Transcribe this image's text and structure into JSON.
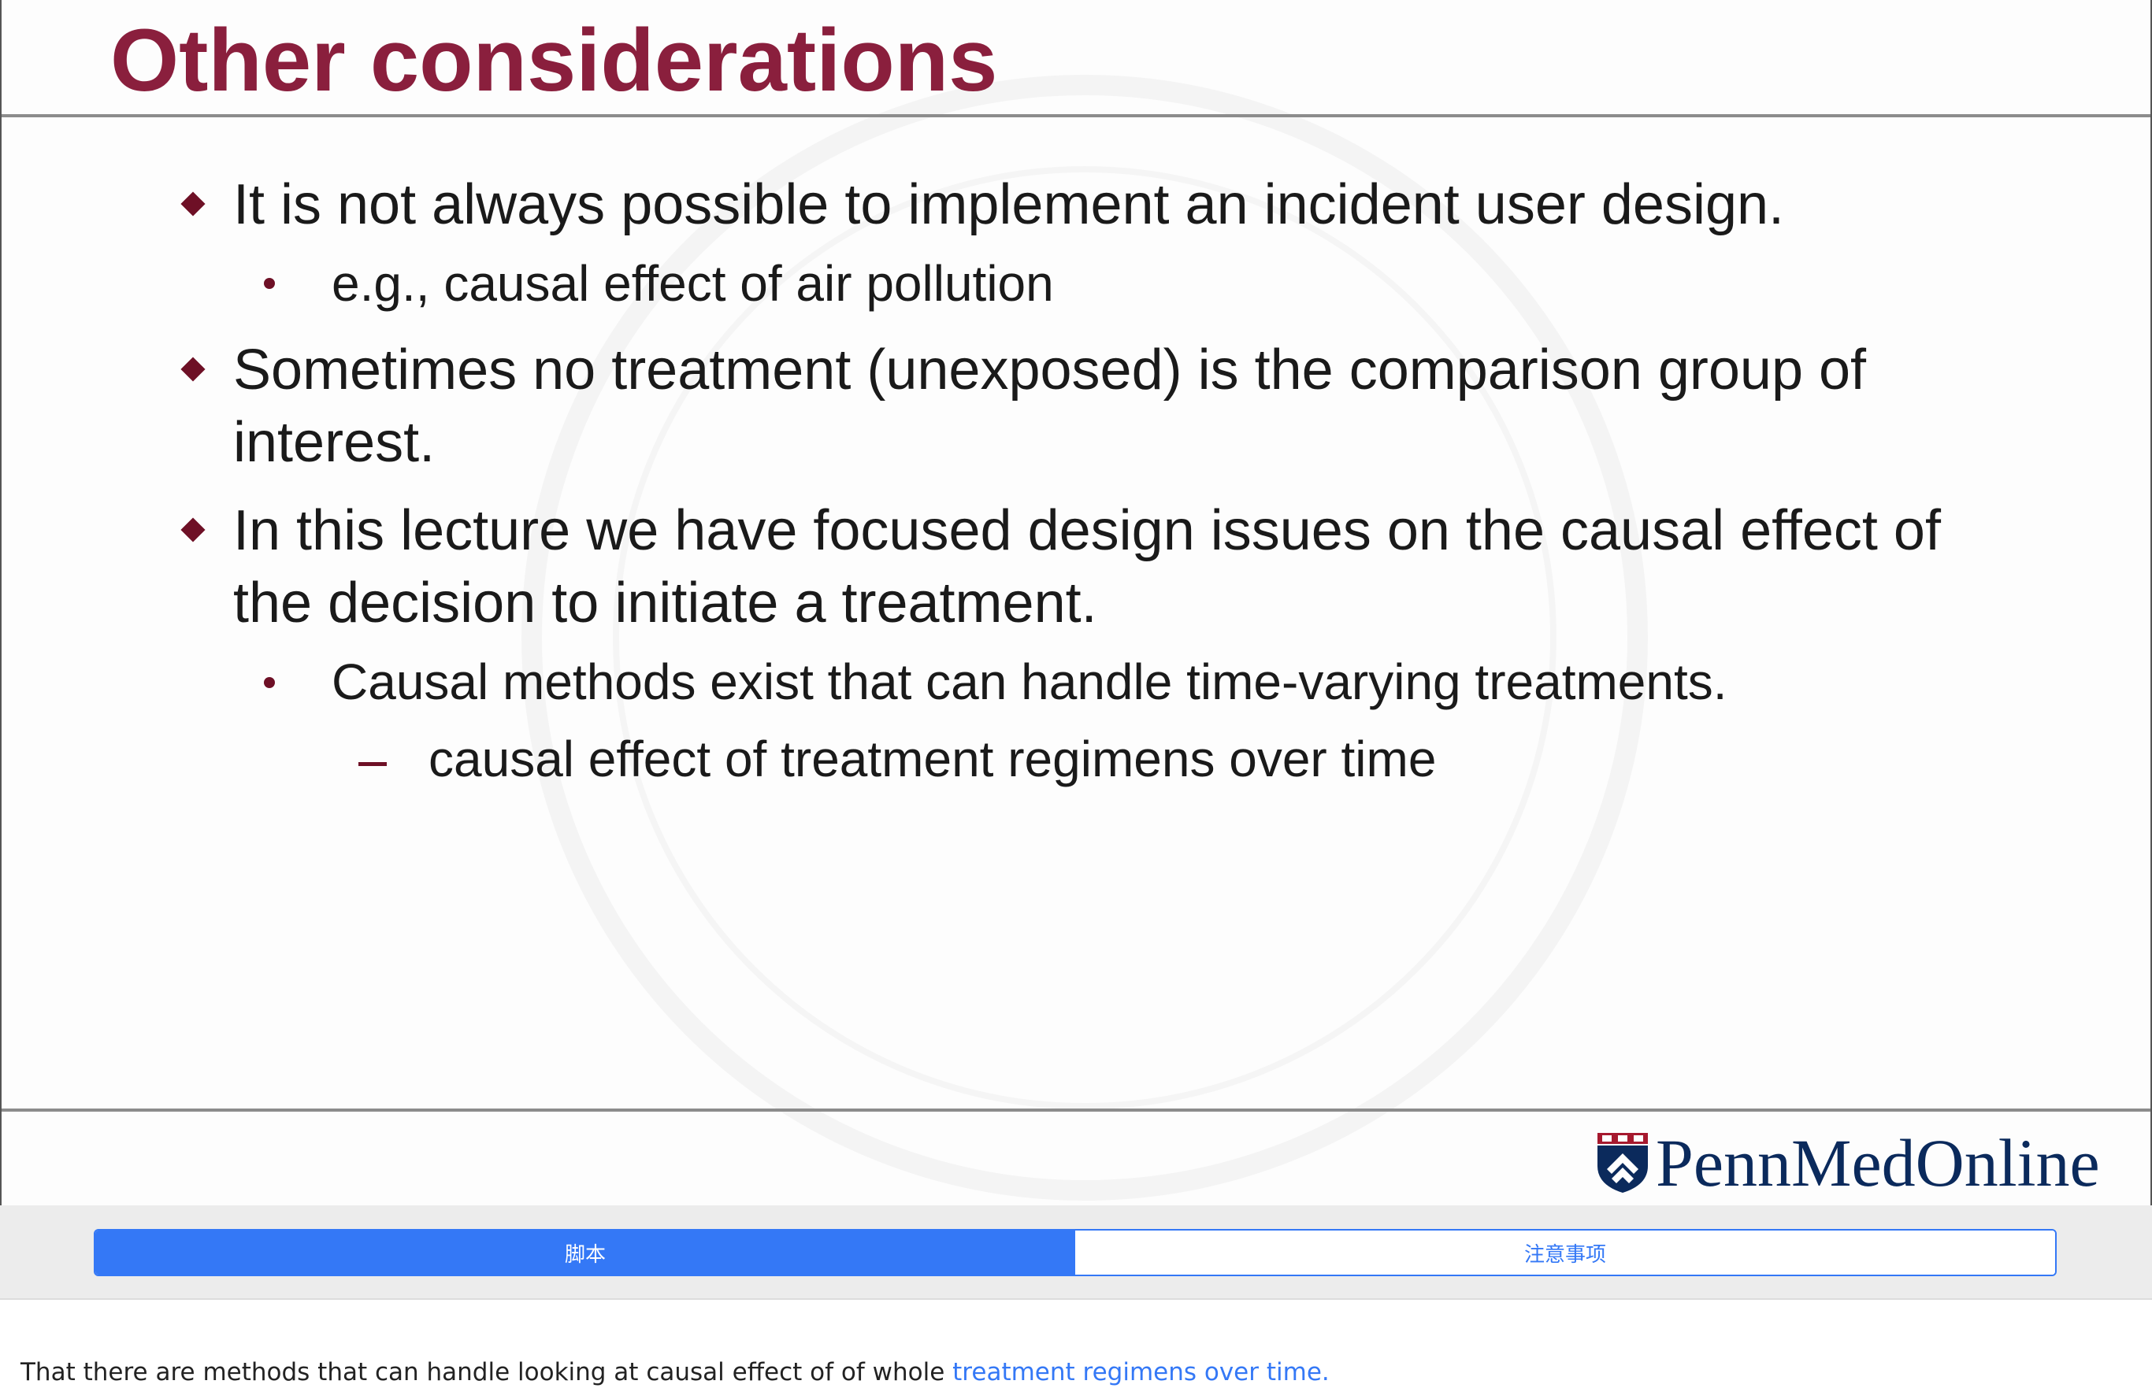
{
  "slide": {
    "title": "Other considerations",
    "bullets": [
      {
        "level": 1,
        "text": "It is not always possible to implement an incident user design."
      },
      {
        "level": 2,
        "text": "e.g., causal effect of air pollution"
      },
      {
        "level": 1,
        "text": "Sometimes no treatment (unexposed) is the comparison group of interest."
      },
      {
        "level": 1,
        "text": "In this lecture we have focused design issues on the causal effect of the decision to initiate a treatment."
      },
      {
        "level": 2,
        "text": "Causal methods exist that can handle time-varying treatments."
      },
      {
        "level": 3,
        "text": "causal effect of treatment regimens over time"
      }
    ],
    "logo": {
      "name": "PennMedOnline",
      "icon": "penn-shield-icon",
      "text_color": "#0b2a5c"
    },
    "colors": {
      "title": "#8a1f3d",
      "bullet_marker": "#6e1026",
      "body_text": "#1a1a1a"
    }
  },
  "tabs": [
    {
      "label": "脚本",
      "active": true
    },
    {
      "label": "注意事项",
      "active": false
    }
  ],
  "transcript": {
    "text": "That there are methods that can handle looking at causal effect of of whole ",
    "highlight": "treatment regimens over time."
  },
  "colors": {
    "accent": "#3478f6",
    "tab_bar_bg": "#ececec"
  }
}
